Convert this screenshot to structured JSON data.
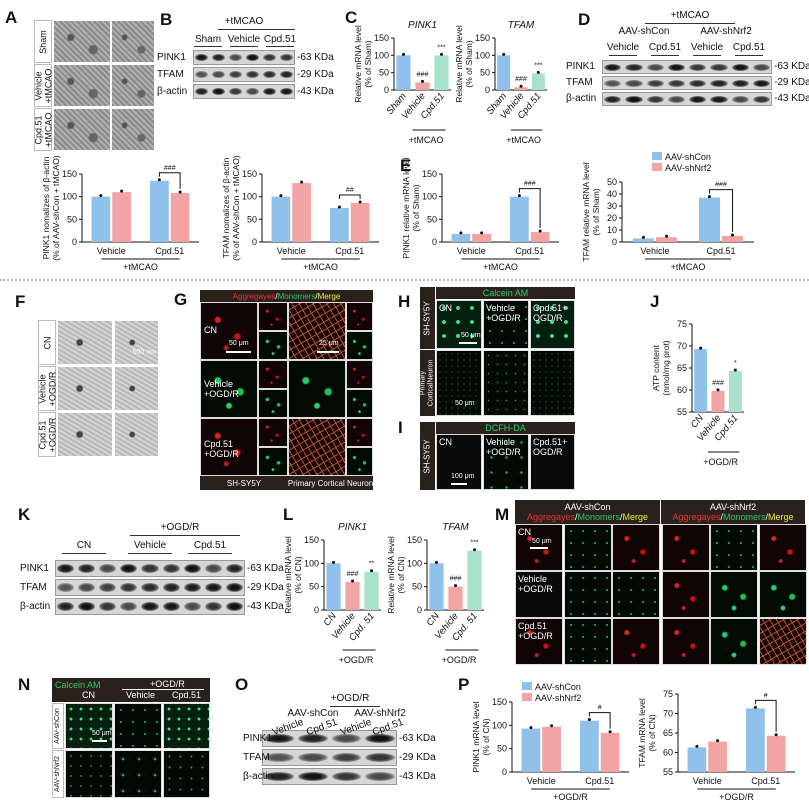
{
  "panels": {
    "A": "A",
    "B": "B",
    "C": "C",
    "D": "D",
    "E": "E",
    "F": "F",
    "G": "G",
    "H": "H",
    "I": "I",
    "J": "J",
    "K": "K",
    "L": "L",
    "M": "M",
    "N": "N",
    "O": "O",
    "P": "P"
  },
  "colors": {
    "shcon": "#8fc1ea",
    "shnrf2": "#f2a3a3",
    "cpd": "#a9e2cb",
    "sham": "#8fc1ea",
    "vehicle": "#f2a3a3"
  },
  "panelA": {
    "rows": [
      "Sham",
      "Vehicle\n+tMCAO",
      "Cpd.51\n+tMCAO"
    ]
  },
  "panelB": {
    "treatment": "+tMCAO",
    "groups": [
      "Sham",
      "Vehicle",
      "Cpd.51"
    ],
    "proteins": [
      "PINK1",
      "TFAM",
      "β-actin"
    ],
    "sizes": [
      "-63 KDa",
      "-29 KDa",
      "-43 KDa"
    ]
  },
  "panelD": {
    "treatment": "+tMCAO",
    "virus": [
      "AAV-shCon",
      "AAV-shNrf2"
    ],
    "groups": [
      "Vehicle",
      "Cpd.51",
      "Vehicle",
      "Cpd.51"
    ],
    "proteins": [
      "PINK1",
      "TFAM",
      "β-actin"
    ],
    "sizes": [
      "-63 KDa",
      "-29 KDa",
      "-43 KDa"
    ]
  },
  "panelF": {
    "rows": [
      "CN",
      "Vehicle\n+OGD/R",
      "Cpd.51\n+OGD/R"
    ],
    "scale": "500 nm"
  },
  "panelG": {
    "header": {
      "a": "Aggregayes",
      "s1": "/",
      "m": "Monomers",
      "s2": "/",
      "g": "Merge"
    },
    "rows": [
      "CN",
      "Vehicle\n+OGD/R",
      "Cpd.51\n+OGD/R"
    ],
    "scale1": "50 μm",
    "scale2": "25 μm",
    "footer": [
      "SH-SY5Y",
      "Primary Cortical Neuron"
    ]
  },
  "panelH": {
    "header": "Calcein AM",
    "cells": [
      "CN",
      "Vehicle\n+OGD/R",
      "Cpd.51+\nOGD/R"
    ],
    "rows": [
      "SH-SY5Y",
      "Primary\nCorticalNeuron"
    ],
    "scale": "50 μm",
    "scale2": "50 μm"
  },
  "panelI": {
    "header": "DCFH-DA",
    "cells": [
      "CN",
      "Vehicle\n+OGD/R",
      "Cpd.51+\nOGD/R"
    ],
    "row": "SH-SY5Y",
    "scale": "100 μm"
  },
  "panelK": {
    "treatment": "+OGD/R",
    "groups": [
      "CN",
      "Vehicle",
      "Cpd.51"
    ],
    "proteins": [
      "PINK1",
      "TFAM",
      "β-actin"
    ],
    "sizes": [
      "-63 KDa",
      "-29 KDa",
      "-43 KDa"
    ]
  },
  "panelM": {
    "virus": [
      "AAV-shCon",
      "AAV-shNrf2"
    ],
    "header": {
      "a": "Aggregayes",
      "s1": "/",
      "m": "Monomers",
      "s2": "/",
      "g": "Merge"
    },
    "rows": [
      "CN",
      "Vehicle\n+OGD/R",
      "Cpd.51\n+OGD/R"
    ],
    "scale": "50 μm"
  },
  "panelN": {
    "stain": "Calcein AM",
    "treatment": "+OGD/R",
    "cols": [
      "CN",
      "Vehicle",
      "Cpd.51"
    ],
    "rows": [
      "AAV-shCon",
      "AAV-shNrf2"
    ],
    "scale": "50 μm"
  },
  "panelO": {
    "treatment": "+OGD/R",
    "virus": [
      "AAV-shCon",
      "AAV-shNrf2"
    ],
    "groups": [
      "Vehicle",
      "Cpd.51",
      "Vehicle",
      "Cpd.51"
    ],
    "proteins": [
      "PINK1",
      "TFAM",
      "β-actin"
    ],
    "sizes": [
      "-63 KDa",
      "-29 KDa",
      "-43 KDa"
    ]
  },
  "chart_data": [
    {
      "type": "bar",
      "panel": "C",
      "title": "PINK1",
      "ylabel": [
        "Relative mRNA level",
        "(% of Sham)"
      ],
      "categories": [
        "Sham",
        "Vehicle",
        "Cpd.51"
      ],
      "values": [
        100,
        22,
        100
      ],
      "bar_colors": [
        "#8fc1ea",
        "#f2a3a3",
        "#a9e2cb"
      ],
      "ylim": [
        0,
        150
      ],
      "yticks": [
        0,
        50,
        100,
        150
      ],
      "sig": [
        "",
        "###",
        "***"
      ],
      "group_label": "+tMCAO",
      "group_span": [
        1,
        2
      ],
      "rotated_labels": true
    },
    {
      "type": "bar",
      "panel": "C",
      "title": "TFAM",
      "ylabel": [
        "Relative mRNA level",
        "(% of Sham)"
      ],
      "categories": [
        "Sham",
        "Vehicle",
        "Cpd.51"
      ],
      "values": [
        100,
        8,
        48
      ],
      "bar_colors": [
        "#8fc1ea",
        "#f2a3a3",
        "#a9e2cb"
      ],
      "ylim": [
        0,
        150
      ],
      "yticks": [
        0,
        50,
        100,
        150
      ],
      "sig": [
        "",
        "###",
        "***"
      ],
      "group_label": "+tMCAO",
      "group_span": [
        1,
        2
      ],
      "rotated_labels": true
    },
    {
      "type": "bar",
      "panel": "D",
      "ylabel": [
        "PINK1 nomalizes of β-actin",
        "(% of AAV-shCon + tMCAO)"
      ],
      "categories": [
        "Vehicle",
        "Cpd.51"
      ],
      "series": [
        {
          "name": "AAV-shCon",
          "values": [
            100,
            135
          ]
        },
        {
          "name": "AAV-shNrf2",
          "values": [
            110,
            108
          ]
        }
      ],
      "ylim": [
        0,
        150
      ],
      "yticks": [
        0,
        50,
        100,
        150
      ],
      "bracket": {
        "category": 1,
        "label": "###"
      },
      "group_label": "+tMCAO"
    },
    {
      "type": "bar",
      "panel": "D",
      "ylabel": [
        "TFAM nomalizes of β-actin",
        "(% of AAV-shCon + tMCAO)"
      ],
      "categories": [
        "Vehicle",
        "Cpd.51"
      ],
      "series": [
        {
          "name": "AAV-shCon",
          "values": [
            100,
            75
          ]
        },
        {
          "name": "AAV-shNrf2",
          "values": [
            130,
            86
          ]
        }
      ],
      "ylim": [
        0,
        150
      ],
      "yticks": [
        0,
        50,
        100,
        150
      ],
      "bracket": {
        "category": 1,
        "label": "##"
      },
      "group_label": "+tMCAO"
    },
    {
      "type": "bar",
      "panel": "E",
      "ylabel": [
        "PINK1 relative mRNA level",
        "(% of Sham)"
      ],
      "categories": [
        "Vehicle",
        "Cpd.51"
      ],
      "series": [
        {
          "name": "AAV-shCon",
          "values": [
            18,
            100
          ]
        },
        {
          "name": "AAV-shNrf2",
          "values": [
            18,
            22
          ]
        }
      ],
      "ylim": [
        0,
        150
      ],
      "yticks": [
        0,
        50,
        100,
        150
      ],
      "bracket": {
        "category": 1,
        "label": "###"
      },
      "group_label": "+tMCAO"
    },
    {
      "type": "bar",
      "panel": "E",
      "ylabel": [
        "TFAM relative mRNA level",
        "(% of Sham)"
      ],
      "categories": [
        "Vehicle",
        "Cpd.51"
      ],
      "series": [
        {
          "name": "AAV-shCon",
          "values": [
            3,
            37
          ]
        },
        {
          "name": "AAV-shNrf2",
          "values": [
            4,
            5
          ]
        }
      ],
      "ylim": [
        0,
        50
      ],
      "yticks": [
        0,
        10,
        20,
        30,
        40,
        50
      ],
      "bracket": {
        "category": 1,
        "label": "###"
      },
      "group_label": "+tMCAO",
      "legend": "top"
    },
    {
      "type": "bar",
      "panel": "J",
      "ylabel": [
        "ATP content",
        "(nmol/mg prot)"
      ],
      "categories": [
        "CN",
        "Vehicle",
        "Cpd.51"
      ],
      "values": [
        69.3,
        59.8,
        64.3
      ],
      "bar_colors": [
        "#8fc1ea",
        "#f2a3a3",
        "#a9e2cb"
      ],
      "ylim": [
        55,
        75
      ],
      "yticks": [
        55,
        60,
        65,
        70,
        75
      ],
      "sig": [
        "",
        "###",
        "*"
      ],
      "group_label": "+OGD/R",
      "group_span": [
        1,
        2
      ],
      "rotated_labels": true
    },
    {
      "type": "bar",
      "panel": "L",
      "title": "PINK1",
      "ylabel": [
        "Relative mRNA level",
        "(% of CN)"
      ],
      "categories": [
        "CN",
        "Vehicle",
        "Cpd. 51"
      ],
      "values": [
        100,
        60,
        82
      ],
      "bar_colors": [
        "#8fc1ea",
        "#f2a3a3",
        "#a9e2cb"
      ],
      "ylim": [
        0,
        150
      ],
      "yticks": [
        0,
        50,
        100,
        150
      ],
      "sig": [
        "",
        "###",
        "**"
      ],
      "group_label": "+OGD/R",
      "group_span": [
        1,
        2
      ],
      "rotated_labels": true
    },
    {
      "type": "bar",
      "panel": "L",
      "title": "TFAM",
      "ylabel": [
        "Relative mRNA level",
        "(% of CN)"
      ],
      "categories": [
        "CN",
        "Vehicle",
        "Cpd. 51"
      ],
      "values": [
        100,
        50,
        127
      ],
      "bar_colors": [
        "#8fc1ea",
        "#f2a3a3",
        "#a9e2cb"
      ],
      "ylim": [
        0,
        150
      ],
      "yticks": [
        0,
        50,
        100,
        150
      ],
      "sig": [
        "",
        "###",
        "***"
      ],
      "group_label": "+OGD/R",
      "group_span": [
        1,
        2
      ],
      "rotated_labels": true
    },
    {
      "type": "bar",
      "panel": "P",
      "ylabel": [
        "PINK1 mRNA level",
        "(% of CN)"
      ],
      "categories": [
        "Vehicle",
        "Cpd.51"
      ],
      "series": [
        {
          "name": "AAV-shCon",
          "values": [
            93,
            110
          ]
        },
        {
          "name": "AAV-shNrf2",
          "values": [
            97,
            84
          ]
        }
      ],
      "ylim": [
        0,
        150
      ],
      "yticks": [
        0,
        50,
        100,
        150
      ],
      "bracket": {
        "category": 1,
        "label": "#"
      },
      "group_label": "+OGD/R",
      "legend": "top"
    },
    {
      "type": "bar",
      "panel": "P",
      "ylabel": [
        "TFAM mRNA level",
        "(% of CN)"
      ],
      "categories": [
        "Vehicle",
        "Cpd.51"
      ],
      "series": [
        {
          "name": "AAV-shCon",
          "values": [
            61.3,
            71.3
          ]
        },
        {
          "name": "AAV-shNrf2",
          "values": [
            62.8,
            64.3
          ]
        }
      ],
      "ylim": [
        55,
        75
      ],
      "yticks": [
        55,
        60,
        65,
        70,
        75
      ],
      "bracket": {
        "category": 1,
        "label": "#"
      },
      "group_label": "+OGD/R"
    }
  ]
}
